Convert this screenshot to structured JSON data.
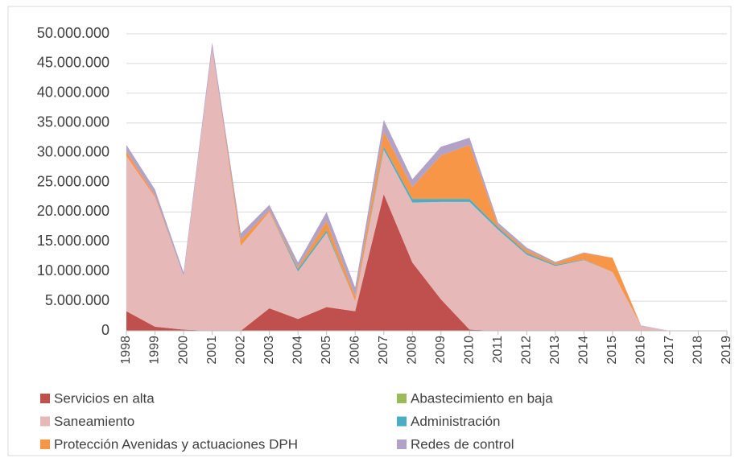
{
  "chart_data": {
    "type": "stacked_area",
    "categories": [
      "1998",
      "1999",
      "2000",
      "2001",
      "2002",
      "2003",
      "2004",
      "2005",
      "2006",
      "2007",
      "2008",
      "2009",
      "2010",
      "2011",
      "2012",
      "2013",
      "2014",
      "2015",
      "2016",
      "2017",
      "2018",
      "2019"
    ],
    "series": [
      {
        "name": "Servicios en alta",
        "color": "#c0504d",
        "values": [
          3300000,
          700000,
          200000,
          0,
          0,
          3800000,
          2000000,
          4000000,
          3300000,
          23000000,
          11500000,
          5300000,
          200000,
          0,
          0,
          0,
          0,
          0,
          0,
          0,
          0,
          0
        ]
      },
      {
        "name": "Abastecimiento en baja",
        "color": "#9bbb59",
        "values": [
          0,
          0,
          0,
          0,
          0,
          0,
          0,
          0,
          0,
          0,
          0,
          0,
          0,
          0,
          0,
          0,
          0,
          0,
          0,
          0,
          0,
          0
        ]
      },
      {
        "name": "Saneamiento",
        "color": "#e6b9b8",
        "values": [
          26100000,
          21800000,
          9000000,
          47500000,
          14300000,
          16200000,
          8000000,
          12500000,
          1700000,
          7500000,
          10100000,
          16400000,
          21500000,
          17000000,
          12800000,
          10900000,
          11900000,
          9900000,
          800000,
          0,
          0,
          0
        ]
      },
      {
        "name": "Administración",
        "color": "#4bacc6",
        "values": [
          0,
          0,
          0,
          0,
          0,
          0,
          400000,
          400000,
          0,
          500000,
          600000,
          500000,
          500000,
          400000,
          300000,
          200000,
          100000,
          0,
          0,
          0,
          0,
          0
        ]
      },
      {
        "name": "Protección Avenidas y actuaciones DPH",
        "color": "#f79646",
        "values": [
          800000,
          300000,
          0,
          0,
          1000000,
          300000,
          300000,
          1600000,
          800000,
          2500000,
          2000000,
          7300000,
          9100000,
          300000,
          500000,
          300000,
          1100000,
          2400000,
          0,
          0,
          0,
          0
        ]
      },
      {
        "name": "Redes de control",
        "color": "#b3a2c7",
        "values": [
          1100000,
          1000000,
          600000,
          1000000,
          1100000,
          900000,
          800000,
          1500000,
          1500000,
          2000000,
          1300000,
          1500000,
          1200000,
          500000,
          400000,
          200000,
          100000,
          0,
          100000,
          0,
          0,
          0
        ]
      }
    ],
    "ylim": [
      0,
      50000000
    ],
    "yticks": [
      {
        "value": 0,
        "label": "0"
      },
      {
        "value": 5000000,
        "label": "5.000.000"
      },
      {
        "value": 10000000,
        "label": "10.000.000"
      },
      {
        "value": 15000000,
        "label": "15.000.000"
      },
      {
        "value": 20000000,
        "label": "20.000.000"
      },
      {
        "value": 25000000,
        "label": "25.000.000"
      },
      {
        "value": 30000000,
        "label": "30.000.000"
      },
      {
        "value": 35000000,
        "label": "35.000.000"
      },
      {
        "value": 40000000,
        "label": "40.000.000"
      },
      {
        "value": 45000000,
        "label": "45.000.000"
      },
      {
        "value": 50000000,
        "label": "50.000.000"
      }
    ],
    "grid": true
  }
}
